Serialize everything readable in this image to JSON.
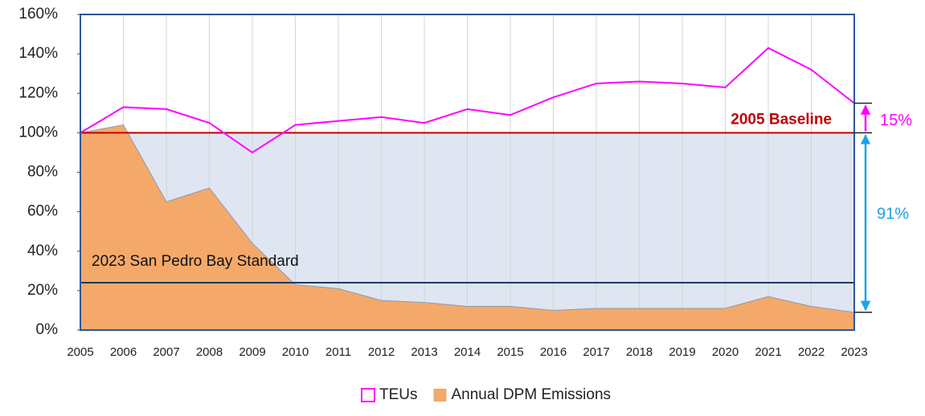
{
  "chart_data": {
    "type": "line",
    "categories": [
      "2005",
      "2006",
      "2007",
      "2008",
      "2009",
      "2010",
      "2011",
      "2012",
      "2013",
      "2014",
      "2015",
      "2016",
      "2017",
      "2018",
      "2019",
      "2020",
      "2021",
      "2022",
      "2023"
    ],
    "series": [
      {
        "name": "TEUs",
        "type": "line",
        "color": "#ff00ff",
        "values": [
          100,
          113,
          112,
          105,
          90,
          104,
          106,
          108,
          105,
          112,
          109,
          118,
          125,
          126,
          125,
          123,
          143,
          132,
          115
        ]
      },
      {
        "name": "Annual DPM Emissions",
        "type": "area",
        "color": "#f4a96a",
        "values": [
          100,
          104,
          65,
          72,
          44,
          23,
          21,
          15,
          14,
          12,
          12,
          10,
          11,
          11,
          11,
          11,
          17,
          12,
          9
        ]
      }
    ],
    "ylim": [
      0,
      160
    ],
    "yticks": [
      {
        "value": 0,
        "label": "0%"
      },
      {
        "value": 20,
        "label": "20%"
      },
      {
        "value": 40,
        "label": "40%"
      },
      {
        "value": 60,
        "label": "60%"
      },
      {
        "value": 80,
        "label": "80%"
      },
      {
        "value": 100,
        "label": "100%"
      },
      {
        "value": 120,
        "label": "120%"
      },
      {
        "value": 140,
        "label": "140%"
      },
      {
        "value": 160,
        "label": "160%"
      }
    ],
    "reference_lines": [
      {
        "label": "2005 Baseline",
        "value": 100,
        "color": "#c00000"
      },
      {
        "label": "2023 San Pedro Bay Standard",
        "value": 24,
        "color": "#1f3864"
      }
    ],
    "annotations": [
      {
        "text": "15%",
        "color": "#ff00ff"
      },
      {
        "text": "91%",
        "color": "#1aa3e8"
      }
    ],
    "grid": true,
    "legend": "bottom"
  }
}
